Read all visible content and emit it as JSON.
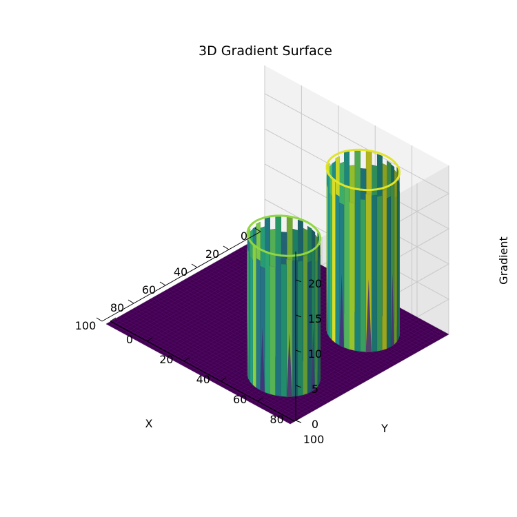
{
  "chart_data": {
    "type": "surface3d",
    "title": "3D Gradient Surface",
    "xlabel": "X",
    "ylabel": "Y",
    "zlabel": "Gradient",
    "xlim": [
      0,
      100
    ],
    "ylim": [
      0,
      100
    ],
    "zlim": [
      0,
      24
    ],
    "xticks": [
      "0",
      "20",
      "40",
      "60",
      "80",
      "100"
    ],
    "yticks": [
      "0",
      "20",
      "40",
      "60",
      "80",
      "100"
    ],
    "zticks": [
      "0",
      "5",
      "10",
      "15",
      "20"
    ],
    "colormap": "viridis",
    "grid": true,
    "surface": {
      "baseline_value": 0,
      "features": [
        {
          "name": "ring",
          "center_x": 25,
          "center_y": 75,
          "radius": 15,
          "height": 23
        },
        {
          "name": "ring",
          "center_x": 75,
          "center_y": 75,
          "radius": 15,
          "height": 20
        }
      ]
    }
  }
}
